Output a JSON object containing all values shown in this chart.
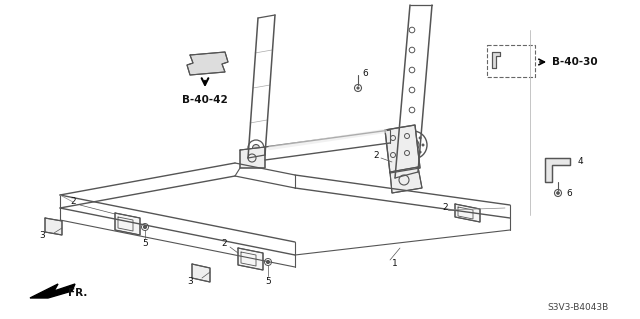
{
  "background_color": "#ffffff",
  "diagram_code": "S3V3-B4043B",
  "ref_b4042": "B-40-42",
  "ref_b4030": "B-40-30",
  "fr_label": "FR.",
  "figsize": [
    6.4,
    3.19
  ],
  "dpi": 100,
  "line_color": "#555555",
  "text_color": "#111111"
}
